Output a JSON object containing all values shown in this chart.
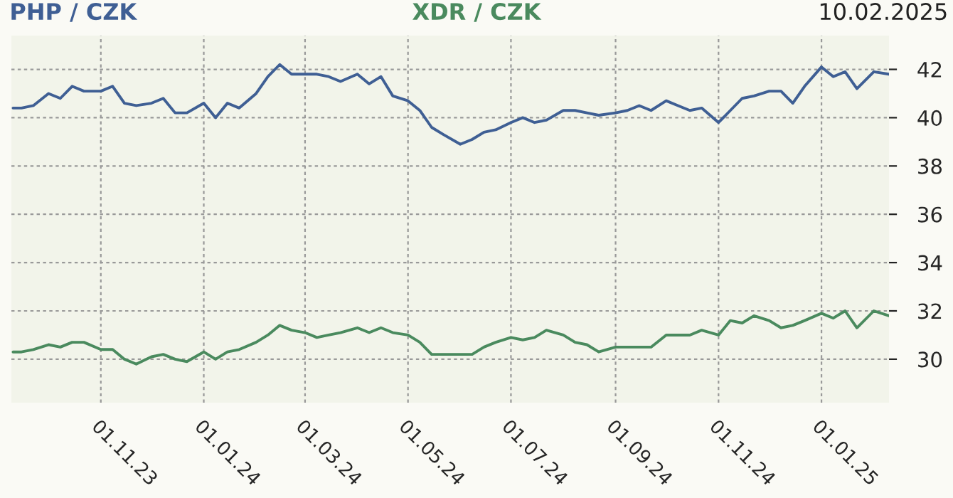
{
  "chart_data": {
    "type": "line",
    "annotations": [
      "10.02.2025"
    ],
    "x": [
      "2023-09-10",
      "2023-09-15",
      "2023-09-22",
      "2023-10-01",
      "2023-10-08",
      "2023-10-15",
      "2023-10-22",
      "2023-11-01",
      "2023-11-08",
      "2023-11-15",
      "2023-11-22",
      "2023-12-01",
      "2023-12-08",
      "2023-12-15",
      "2023-12-22",
      "2024-01-01",
      "2024-01-08",
      "2024-01-15",
      "2024-01-22",
      "2024-02-01",
      "2024-02-08",
      "2024-02-15",
      "2024-02-22",
      "2024-03-01",
      "2024-03-08",
      "2024-03-15",
      "2024-03-22",
      "2024-04-01",
      "2024-04-08",
      "2024-04-15",
      "2024-04-22",
      "2024-05-01",
      "2024-05-08",
      "2024-05-15",
      "2024-05-22",
      "2024-06-01",
      "2024-06-08",
      "2024-06-15",
      "2024-06-22",
      "2024-07-01",
      "2024-07-08",
      "2024-07-15",
      "2024-07-22",
      "2024-08-01",
      "2024-08-08",
      "2024-08-15",
      "2024-08-22",
      "2024-09-01",
      "2024-09-08",
      "2024-09-15",
      "2024-09-22",
      "2024-10-01",
      "2024-10-08",
      "2024-10-15",
      "2024-10-22",
      "2024-11-01",
      "2024-11-08",
      "2024-11-15",
      "2024-11-22",
      "2024-12-01",
      "2024-12-08",
      "2024-12-15",
      "2024-12-22",
      "2025-01-01",
      "2025-01-08",
      "2025-01-15",
      "2025-01-22",
      "2025-02-01",
      "2025-02-10"
    ],
    "series": [
      {
        "name": "PHP / CZK",
        "color": "#3f5f94",
        "values": [
          40.4,
          40.4,
          40.5,
          41.0,
          40.8,
          41.3,
          41.1,
          41.1,
          41.3,
          40.6,
          40.5,
          40.6,
          40.8,
          40.2,
          40.2,
          40.6,
          40.0,
          40.6,
          40.4,
          41.0,
          41.7,
          42.2,
          41.8,
          41.8,
          41.8,
          41.7,
          41.5,
          41.8,
          41.4,
          41.7,
          40.9,
          40.7,
          40.3,
          39.6,
          39.3,
          38.9,
          39.1,
          39.4,
          39.5,
          39.8,
          40.0,
          39.8,
          39.9,
          40.3,
          40.3,
          40.2,
          40.1,
          40.2,
          40.3,
          40.5,
          40.3,
          40.7,
          40.5,
          40.3,
          40.4,
          39.8,
          40.3,
          40.8,
          40.9,
          41.1,
          41.1,
          40.6,
          41.3,
          42.1,
          41.7,
          41.9,
          41.2,
          41.9,
          41.8
        ]
      },
      {
        "name": "XDR / CZK",
        "color": "#4a8a5e",
        "values": [
          30.3,
          30.3,
          30.4,
          30.6,
          30.5,
          30.7,
          30.7,
          30.4,
          30.4,
          30.0,
          29.8,
          30.1,
          30.2,
          30.0,
          29.9,
          30.3,
          30.0,
          30.3,
          30.4,
          30.7,
          31.0,
          31.4,
          31.2,
          31.1,
          30.9,
          31.0,
          31.1,
          31.3,
          31.1,
          31.3,
          31.1,
          31.0,
          30.7,
          30.2,
          30.2,
          30.2,
          30.2,
          30.5,
          30.7,
          30.9,
          30.8,
          30.9,
          31.2,
          31.0,
          30.7,
          30.6,
          30.3,
          30.5,
          30.5,
          30.5,
          30.5,
          31.0,
          31.0,
          31.0,
          31.2,
          31.0,
          31.6,
          31.5,
          31.8,
          31.6,
          31.3,
          31.4,
          31.6,
          31.9,
          31.7,
          32.0,
          31.3,
          32.0,
          31.8
        ]
      }
    ],
    "xlim": [
      "2023-09-09",
      "2025-02-10"
    ],
    "xticks": [
      {
        "value": "2023-11-01",
        "label": "01.11.23"
      },
      {
        "value": "2024-01-01",
        "label": "01.01.24"
      },
      {
        "value": "2024-03-01",
        "label": "01.03.24"
      },
      {
        "value": "2024-05-01",
        "label": "01.05.24"
      },
      {
        "value": "2024-07-01",
        "label": "01.07.24"
      },
      {
        "value": "2024-09-01",
        "label": "01.09.24"
      },
      {
        "value": "2024-11-01",
        "label": "01.11.24"
      },
      {
        "value": "2025-01-01",
        "label": "01.01.25"
      }
    ],
    "ylim": [
      28.2,
      43.4
    ],
    "yticks": [
      30,
      32,
      34,
      36,
      38,
      40,
      42
    ],
    "grid": true,
    "legend": "top",
    "marker": "none",
    "line_style": "solid"
  }
}
